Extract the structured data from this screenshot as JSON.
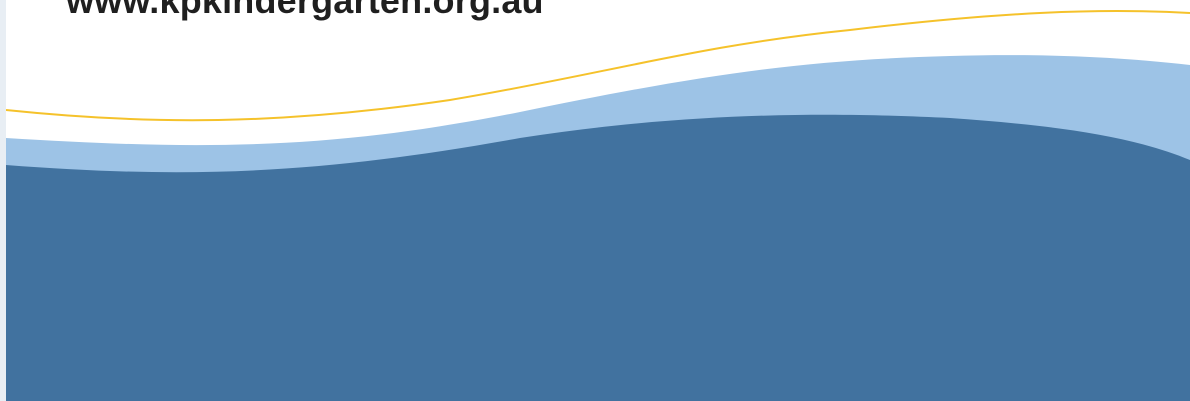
{
  "header": {
    "url_text": "www.kpkindergarten.org.au"
  },
  "colors": {
    "background": "#ffffff",
    "text": "#1f1f1f",
    "yellow_line": "#f5c22b",
    "light_wave": "#9dc3e6",
    "dark_wave": "#41729f",
    "left_edge": "#e8eef4"
  }
}
